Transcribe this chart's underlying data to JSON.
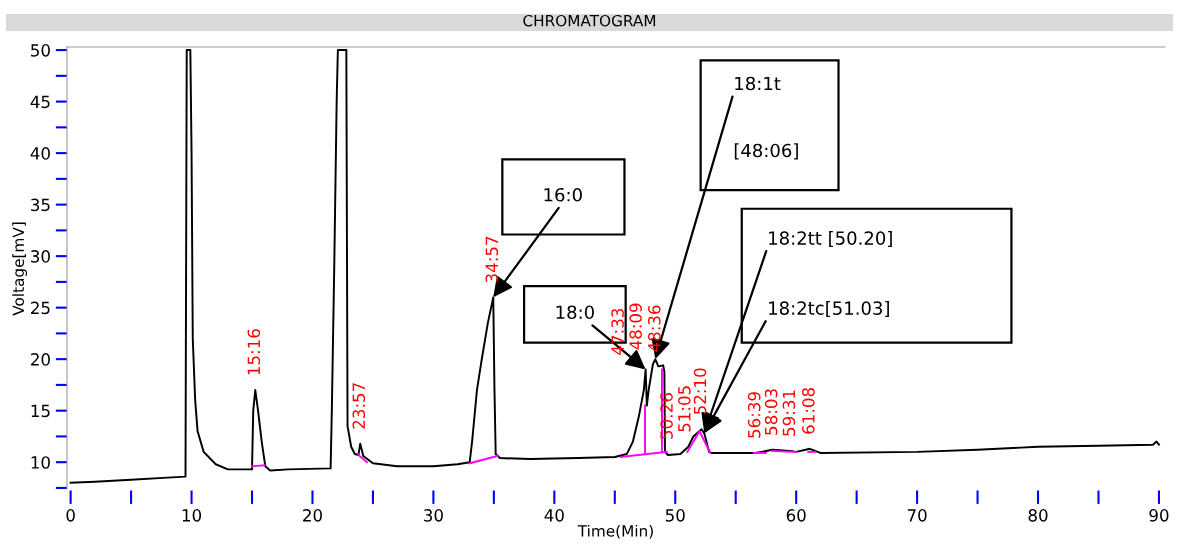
{
  "chart_data": {
    "type": "line",
    "title": "CHROMATOGRAM",
    "xlabel": "Time(Min)",
    "ylabel": "Voltage[mV]",
    "x": [
      0,
      2,
      5,
      8,
      9.5,
      9.6,
      9.9,
      10.0,
      10.1,
      10.3,
      10.5,
      11,
      12,
      13,
      15.0,
      15.1,
      15.27,
      15.5,
      15.8,
      16.1,
      16.5,
      18,
      21.5,
      21.6,
      21.8,
      22.0,
      22.1,
      22.8,
      22.9,
      23.2,
      23.5,
      23.8,
      23.95,
      24.2,
      25,
      27,
      30,
      32,
      33.0,
      33.2,
      33.6,
      34.0,
      34.5,
      34.95,
      35.05,
      35.15,
      35.5,
      38,
      42,
      45,
      46,
      46.5,
      47.0,
      47.4,
      47.55,
      47.65,
      47.8,
      48.15,
      48.35,
      48.6,
      49.0,
      49.1,
      49.15,
      49.4,
      50.43,
      51.08,
      51.5,
      52.17,
      52.4,
      52.8,
      53,
      56.65,
      58.05,
      59.52,
      60,
      61.13,
      62,
      70,
      75,
      80,
      85,
      89.5,
      89.8,
      90
    ],
    "series": [
      {
        "color": "#000000",
        "values": [
          8.0,
          8.1,
          8.3,
          8.5,
          8.6,
          50,
          50,
          40,
          22,
          16,
          13,
          11,
          9.8,
          9.3,
          9.3,
          15,
          17,
          15,
          12,
          9.6,
          9.2,
          9.3,
          9.4,
          15,
          29,
          45,
          50,
          50,
          13.5,
          11.5,
          10.8,
          10.7,
          11.8,
          10.6,
          9.9,
          9.6,
          9.6,
          9.8,
          10.0,
          12,
          17,
          20,
          23.5,
          26,
          17,
          10.8,
          10.4,
          10.3,
          10.4,
          10.5,
          10.8,
          12,
          14.5,
          17,
          19,
          15.5,
          17,
          19.5,
          20,
          19.3,
          19.4,
          18.8,
          11,
          10.7,
          10.8,
          11.5,
          12.5,
          13.2,
          12.8,
          11,
          10.9,
          10.9,
          11.2,
          11.1,
          11.0,
          11.3,
          10.9,
          11.0,
          11.2,
          11.5,
          11.6,
          11.7,
          12.0,
          11.7
        ]
      },
      {
        "color": "#ff00ff",
        "x": [
          15.0,
          16.0
        ],
        "values": [
          9.6,
          9.7
        ]
      },
      {
        "color": "#ff00ff",
        "x": [
          23.8,
          24.5
        ],
        "values": [
          10.7,
          10.0
        ]
      },
      {
        "color": "#ff00ff",
        "x": [
          33.0,
          35.3
        ],
        "values": [
          9.9,
          10.6
        ]
      },
      {
        "color": "#ff00ff",
        "x": [
          45.5,
          49.3
        ],
        "values": [
          10.5,
          11.0
        ]
      },
      {
        "color": "#ff00ff",
        "x": [
          47.5,
          47.5
        ],
        "values": [
          10.8,
          15.5
        ]
      },
      {
        "color": "#ff00ff",
        "x": [
          48.9,
          48.9
        ],
        "values": [
          11.0,
          19.0
        ]
      },
      {
        "color": "#ff00ff",
        "x": [
          51.0,
          52.0,
          52.9
        ],
        "values": [
          11.0,
          13.0,
          10.9
        ]
      },
      {
        "color": "#ff00ff",
        "x": [
          56.5,
          57.5
        ],
        "values": [
          10.9,
          10.9
        ]
      },
      {
        "color": "#ff00ff",
        "x": [
          58.0,
          60.0
        ],
        "values": [
          11.1,
          11.0
        ]
      },
      {
        "color": "#ff00ff",
        "x": [
          61.0,
          61.6
        ],
        "values": [
          11.0,
          11.0
        ]
      }
    ],
    "xlim": [
      -0.3,
      90.5
    ],
    "ylim": [
      7.3,
      50.3
    ],
    "xticks": [
      {
        "value": 0,
        "label": "0"
      },
      {
        "value": 5,
        "label": null
      },
      {
        "value": 10,
        "label": "10"
      },
      {
        "value": 15,
        "label": null
      },
      {
        "value": 20,
        "label": "20"
      },
      {
        "value": 25,
        "label": null
      },
      {
        "value": 30,
        "label": "30"
      },
      {
        "value": 35,
        "label": null
      },
      {
        "value": 40,
        "label": "40"
      },
      {
        "value": 45,
        "label": null
      },
      {
        "value": 50,
        "label": "50"
      },
      {
        "value": 55,
        "label": null
      },
      {
        "value": 60,
        "label": "60"
      },
      {
        "value": 65,
        "label": null
      },
      {
        "value": 70,
        "label": "70"
      },
      {
        "value": 75,
        "label": null
      },
      {
        "value": 80,
        "label": "80"
      },
      {
        "value": 85,
        "label": null
      },
      {
        "value": 90,
        "label": "90"
      }
    ],
    "yticks": [
      {
        "value": 7.5,
        "label": null
      },
      10,
      {
        "value": 12.5,
        "label": null
      },
      15,
      {
        "value": 17.5,
        "label": null
      },
      20,
      {
        "value": 22.5,
        "label": null
      },
      25,
      {
        "value": 27.5,
        "label": null
      },
      30,
      {
        "value": 32.5,
        "label": null
      },
      35,
      {
        "value": 37.5,
        "label": null
      },
      40,
      {
        "value": 42.5,
        "label": null
      },
      45,
      {
        "value": 47.5,
        "label": null
      },
      50
    ],
    "annotations": [
      {
        "text": "16:0",
        "x": 34.95,
        "y": 26
      },
      {
        "text": "18:0",
        "x": 47.55,
        "y": 19
      },
      {
        "text": "18:1t",
        "x": 48.35,
        "y": 20
      },
      "[48:06]",
      {
        "text": "18:2tt [50.20]",
        "x": 52.4,
        "y": 12.8
      },
      {
        "text": "18:2tc[51.03]",
        "x": 52.4,
        "y": 12.8
      },
      {
        "text": "15:16",
        "x": 15.27,
        "y": 17
      },
      {
        "text": "23:57",
        "x": 23.95,
        "y": 11.8
      },
      {
        "text": "34:57",
        "x": 34.95,
        "y": 26
      },
      {
        "text": "47:33",
        "x": 47.55,
        "y": 19
      },
      {
        "text": "48:09",
        "x": 48.15,
        "y": 19.5
      },
      {
        "text": "48:36",
        "x": 48.6,
        "y": 19.3
      },
      {
        "text": "50:26",
        "x": 50.43,
        "y": 10.8
      },
      {
        "text": "51:05",
        "x": 51.08,
        "y": 11.5
      },
      {
        "text": "52:10",
        "x": 52.17,
        "y": 13.2
      },
      {
        "text": "56:39",
        "x": 56.65,
        "y": 10.9
      },
      {
        "text": "58:03",
        "x": 58.05,
        "y": 11.2
      },
      {
        "text": "59:31",
        "x": 59.52,
        "y": 11.1
      },
      {
        "text": "61:08",
        "x": 61.13,
        "y": 11.3
      }
    ],
    "line_style": "solid"
  }
}
